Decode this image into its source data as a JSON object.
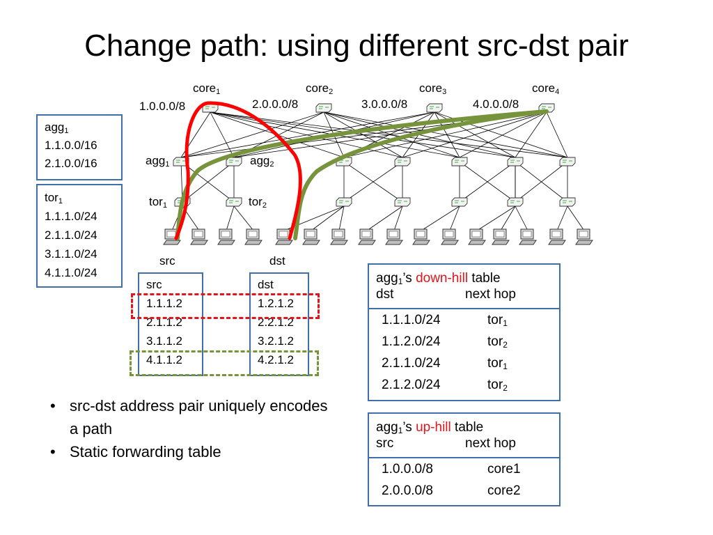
{
  "slide": {
    "title": "Change path: using different src-dst pair"
  },
  "network": {
    "core_labels": [
      {
        "base": "core",
        "sub": "1"
      },
      {
        "base": "core",
        "sub": "2"
      },
      {
        "base": "core",
        "sub": "3"
      },
      {
        "base": "core",
        "sub": "4"
      }
    ],
    "core_prefixes": [
      "1.0.0.0/8",
      "2.0.0.0/8",
      "3.0.0.0/8",
      "4.0.0.0/8"
    ],
    "agg_labels": [
      {
        "base": "agg",
        "sub": "1"
      },
      {
        "base": "agg",
        "sub": "2"
      }
    ],
    "tor_labels": [
      {
        "base": "tor",
        "sub": "1"
      },
      {
        "base": "tor",
        "sub": "2"
      }
    ],
    "host_labels": {
      "src": "src",
      "dst": "dst"
    },
    "path_colors": {
      "red_path": "#ff0000",
      "green_path": "#77933c",
      "device": "#f2f2f2"
    }
  },
  "agg_box": {
    "name": {
      "base": "agg",
      "sub": "1"
    },
    "prefixes": [
      "1.1.0.0/16",
      "2.1.0.0/16"
    ]
  },
  "tor_box": {
    "name": {
      "base": "tor",
      "sub": "1"
    },
    "prefixes": [
      "1.1.1.0/24",
      "2.1.1.0/24",
      "3.1.1.0/24",
      "4.1.1.0/24"
    ]
  },
  "src_list": {
    "header": "src",
    "items": [
      "1.1.1.2",
      "2.1.1.2",
      "3.1.1.2",
      "4.1.1.2"
    ]
  },
  "dst_list": {
    "header": "dst",
    "items": [
      "1.2.1.2",
      "2.2.1.2",
      "3.2.1.2",
      "4.2.1.2"
    ]
  },
  "downhill_table": {
    "owner": {
      "base": "agg",
      "sub": "1"
    },
    "possessive": "’s",
    "highlight": "down-hill",
    "suffix": "table",
    "col1": "dst",
    "col2": "next hop",
    "rows": [
      {
        "prefix": "1.1.1.0/24",
        "hop_base": "tor",
        "hop_sub": "1"
      },
      {
        "prefix": "1.1.2.0/24",
        "hop_base": "tor",
        "hop_sub": "2"
      },
      {
        "prefix": "2.1.1.0/24",
        "hop_base": "tor",
        "hop_sub": "1"
      },
      {
        "prefix": "2.1.2.0/24",
        "hop_base": "tor",
        "hop_sub": "2"
      }
    ]
  },
  "uphill_table": {
    "owner": {
      "base": "agg",
      "sub": "1"
    },
    "possessive": "’s",
    "highlight": "up-hill",
    "suffix": "table",
    "col1": "src",
    "col2": "next hop",
    "rows": [
      {
        "prefix": "1.0.0.0/8",
        "hop": "core1"
      },
      {
        "prefix": "2.0.0.0/8",
        "hop": "core2"
      }
    ]
  },
  "bullets": {
    "marker": "•",
    "items": [
      "src-dst address pair uniquely encodes a path",
      "Static forwarding table"
    ]
  }
}
